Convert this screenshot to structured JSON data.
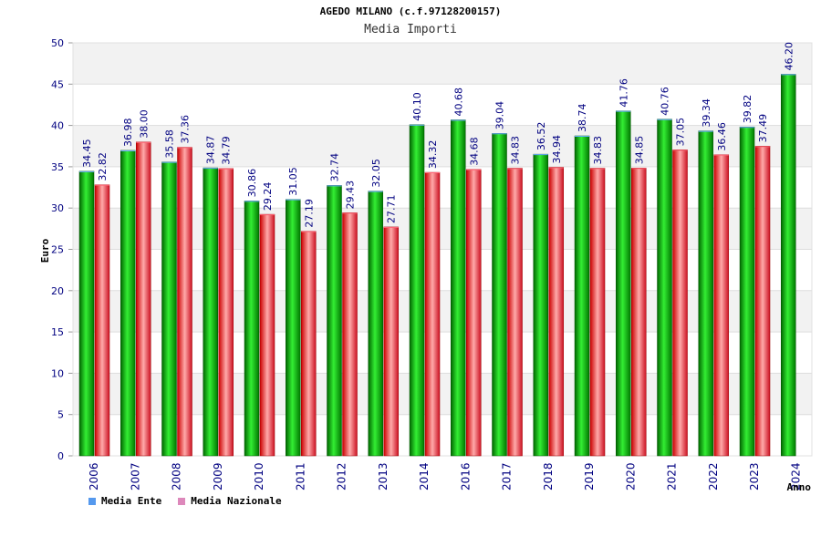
{
  "chart_data": {
    "type": "bar",
    "title": "AGEDO MILANO (c.f.97128200157)",
    "subtitle": "Media Importi",
    "xlabel": "Anno",
    "ylabel": "Euro",
    "ylim": [
      0,
      50
    ],
    "yticks": [
      0,
      5,
      10,
      15,
      20,
      25,
      30,
      35,
      40,
      45,
      50
    ],
    "categories": [
      "2006",
      "2007",
      "2008",
      "2009",
      "2010",
      "2011",
      "2012",
      "2013",
      "2014",
      "2016",
      "2017",
      "2018",
      "2019",
      "2020",
      "2021",
      "2022",
      "2023",
      "2024"
    ],
    "series": [
      {
        "name": "Media Ente",
        "color": "#00aa00",
        "values": [
          34.45,
          36.98,
          35.58,
          34.87,
          30.86,
          31.05,
          32.74,
          32.05,
          40.1,
          40.68,
          39.04,
          36.52,
          38.74,
          41.76,
          40.76,
          39.34,
          39.82,
          46.2
        ],
        "labels": [
          "34.45",
          "36.98",
          "35.58",
          "34.87",
          "30.86",
          "31.05",
          "32.74",
          "32.05",
          "40.10",
          "40.68",
          "39.04",
          "36.52",
          "38.74",
          "41.76",
          "40.76",
          "39.34",
          "39.82",
          "46.20"
        ]
      },
      {
        "name": "Media Nazionale",
        "color": "#ee2233",
        "values": [
          32.82,
          38.0,
          37.36,
          34.79,
          29.24,
          27.19,
          29.43,
          27.71,
          34.32,
          34.68,
          34.83,
          34.94,
          34.83,
          34.85,
          37.05,
          36.46,
          37.49,
          null
        ],
        "labels": [
          "32.82",
          "38.00",
          "37.36",
          "34.79",
          "29.24",
          "27.19",
          "29.43",
          "27.71",
          "34.32",
          "34.68",
          "34.83",
          "34.94",
          "34.83",
          "34.85",
          "37.05",
          "36.46",
          "37.49",
          null
        ]
      }
    ],
    "legend": {
      "position": "bottom-left",
      "items": [
        {
          "label": "Media Ente",
          "color": "#5599ee"
        },
        {
          "label": "Media Nazionale",
          "color": "#dd88bb"
        }
      ]
    },
    "grid": true
  }
}
